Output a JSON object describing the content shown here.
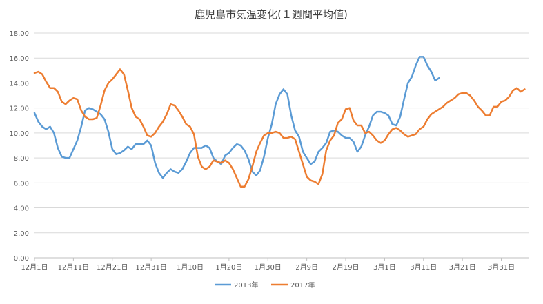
{
  "chart_data": {
    "type": "line",
    "title": "鹿児島市気温変化(１週間平均値)",
    "xlabel": "",
    "ylabel": "",
    "ylim": [
      0,
      18
    ],
    "y_ticks": [
      "0.00",
      "2.00",
      "4.00",
      "6.00",
      "8.00",
      "10.00",
      "12.00",
      "14.00",
      "16.00",
      "18.00"
    ],
    "x_range_days": [
      0,
      127
    ],
    "x_ticks": [
      {
        "day": 0,
        "label": "12月1日"
      },
      {
        "day": 10,
        "label": "12月11日"
      },
      {
        "day": 20,
        "label": "12月21日"
      },
      {
        "day": 30,
        "label": "12月31日"
      },
      {
        "day": 40,
        "label": "1月10日"
      },
      {
        "day": 50,
        "label": "1月20日"
      },
      {
        "day": 60,
        "label": "1月30日"
      },
      {
        "day": 70,
        "label": "2月9日"
      },
      {
        "day": 80,
        "label": "2月19日"
      },
      {
        "day": 90,
        "label": "3月1日"
      },
      {
        "day": 100,
        "label": "3月11日"
      },
      {
        "day": 110,
        "label": "3月21日"
      },
      {
        "day": 120,
        "label": "3月31日"
      }
    ],
    "legend_position": "bottom",
    "series": [
      {
        "name": "2013年",
        "color": "#5b9bd5",
        "start_day": 0,
        "values": [
          11.6,
          10.9,
          10.5,
          10.3,
          10.5,
          10.0,
          8.8,
          8.1,
          8.0,
          8.0,
          8.7,
          9.4,
          10.5,
          11.8,
          12.0,
          11.9,
          11.7,
          11.5,
          11.1,
          10.1,
          8.7,
          8.3,
          8.4,
          8.6,
          8.9,
          8.7,
          9.1,
          9.1,
          9.1,
          9.4,
          9.0,
          7.6,
          6.8,
          6.4,
          6.8,
          7.1,
          6.9,
          6.8,
          7.1,
          7.7,
          8.4,
          8.8,
          8.8,
          8.8,
          9.0,
          8.8,
          8.0,
          7.7,
          7.5,
          8.2,
          8.4,
          8.8,
          9.1,
          9.0,
          8.6,
          7.9,
          6.9,
          6.6,
          7.0,
          8.1,
          9.6,
          10.7,
          12.3,
          13.1,
          13.5,
          13.1,
          11.4,
          10.2,
          9.7,
          8.5,
          8.0,
          7.5,
          7.7,
          8.5,
          8.8,
          9.2,
          10.1,
          10.2,
          10.1,
          9.8,
          9.6,
          9.6,
          9.3,
          8.5,
          8.9,
          9.8,
          10.5,
          11.4,
          11.7,
          11.7,
          11.6,
          11.4,
          10.7,
          10.6,
          11.3,
          12.7,
          14.0,
          14.5,
          15.4,
          16.1,
          16.1,
          15.4,
          14.9,
          14.2,
          14.4
        ]
      },
      {
        "name": "2017年",
        "color": "#ed7d31",
        "start_day": 0,
        "values": [
          14.8,
          14.9,
          14.7,
          14.1,
          13.6,
          13.6,
          13.3,
          12.5,
          12.3,
          12.6,
          12.8,
          12.7,
          11.8,
          11.3,
          11.1,
          11.1,
          11.2,
          12.2,
          13.4,
          14.0,
          14.3,
          14.7,
          15.1,
          14.7,
          13.4,
          12.0,
          11.3,
          11.1,
          10.5,
          9.8,
          9.7,
          10.0,
          10.5,
          10.9,
          11.5,
          12.3,
          12.2,
          11.8,
          11.3,
          10.7,
          10.5,
          9.9,
          8.1,
          7.3,
          7.1,
          7.3,
          7.8,
          7.7,
          7.6,
          7.8,
          7.6,
          7.1,
          6.4,
          5.7,
          5.7,
          6.3,
          7.3,
          8.5,
          9.2,
          9.8,
          10.0,
          10.0,
          10.1,
          10.0,
          9.6,
          9.6,
          9.7,
          9.5,
          8.5,
          7.5,
          6.5,
          6.2,
          6.1,
          5.9,
          6.7,
          8.6,
          9.4,
          9.8,
          10.8,
          11.1,
          11.9,
          12.0,
          11.0,
          10.6,
          10.6,
          10.0,
          10.1,
          9.8,
          9.4,
          9.2,
          9.4,
          9.9,
          10.3,
          10.4,
          10.2,
          9.9,
          9.7,
          9.8,
          9.9,
          10.3,
          10.5,
          11.1,
          11.5,
          11.7,
          11.9,
          12.1,
          12.4,
          12.6,
          12.8,
          13.1,
          13.2,
          13.2,
          13.0,
          12.6,
          12.1,
          11.8,
          11.4,
          11.4,
          12.1,
          12.1,
          12.5,
          12.6,
          12.9,
          13.4,
          13.6,
          13.3,
          13.5
        ]
      }
    ]
  }
}
